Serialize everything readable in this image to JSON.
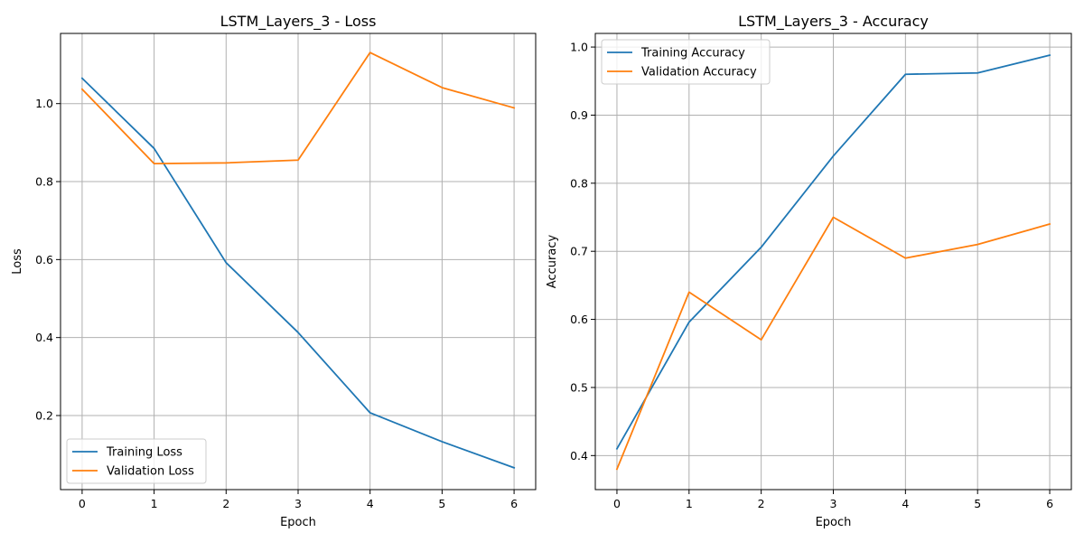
{
  "chart_data": [
    {
      "type": "line",
      "title": "LSTM_Layers_3 - Loss",
      "xlabel": "Epoch",
      "ylabel": "Loss",
      "x": [
        0,
        1,
        2,
        3,
        4,
        5,
        6
      ],
      "xticks": [
        0,
        1,
        2,
        3,
        4,
        5,
        6
      ],
      "xlim": [
        -0.3,
        6.3
      ],
      "yticks": [
        0.2,
        0.4,
        0.6,
        0.8,
        1.0
      ],
      "ylim": [
        0.01,
        1.18
      ],
      "grid": true,
      "legend_position": "lower-left",
      "series": [
        {
          "name": "Training Loss",
          "color": "#1f77b4",
          "values": [
            1.065,
            0.885,
            0.592,
            0.413,
            0.207,
            0.133,
            0.066
          ]
        },
        {
          "name": "Validation Loss",
          "color": "#ff7f0e",
          "values": [
            1.037,
            0.846,
            0.848,
            0.855,
            1.131,
            1.041,
            0.989
          ]
        }
      ]
    },
    {
      "type": "line",
      "title": "LSTM_Layers_3 - Accuracy",
      "xlabel": "Epoch",
      "ylabel": "Accuracy",
      "x": [
        0,
        1,
        2,
        3,
        4,
        5,
        6
      ],
      "xticks": [
        0,
        1,
        2,
        3,
        4,
        5,
        6
      ],
      "xlim": [
        -0.3,
        6.3
      ],
      "yticks": [
        0.4,
        0.5,
        0.6,
        0.7,
        0.8,
        0.9,
        1.0
      ],
      "ylim": [
        0.35,
        1.02
      ],
      "grid": true,
      "legend_position": "upper-left",
      "series": [
        {
          "name": "Training Accuracy",
          "color": "#1f77b4",
          "values": [
            0.41,
            0.596,
            0.706,
            0.84,
            0.96,
            0.962,
            0.988
          ]
        },
        {
          "name": "Validation Accuracy",
          "color": "#ff7f0e",
          "values": [
            0.38,
            0.64,
            0.57,
            0.75,
            0.69,
            0.71,
            0.74
          ]
        }
      ]
    }
  ]
}
